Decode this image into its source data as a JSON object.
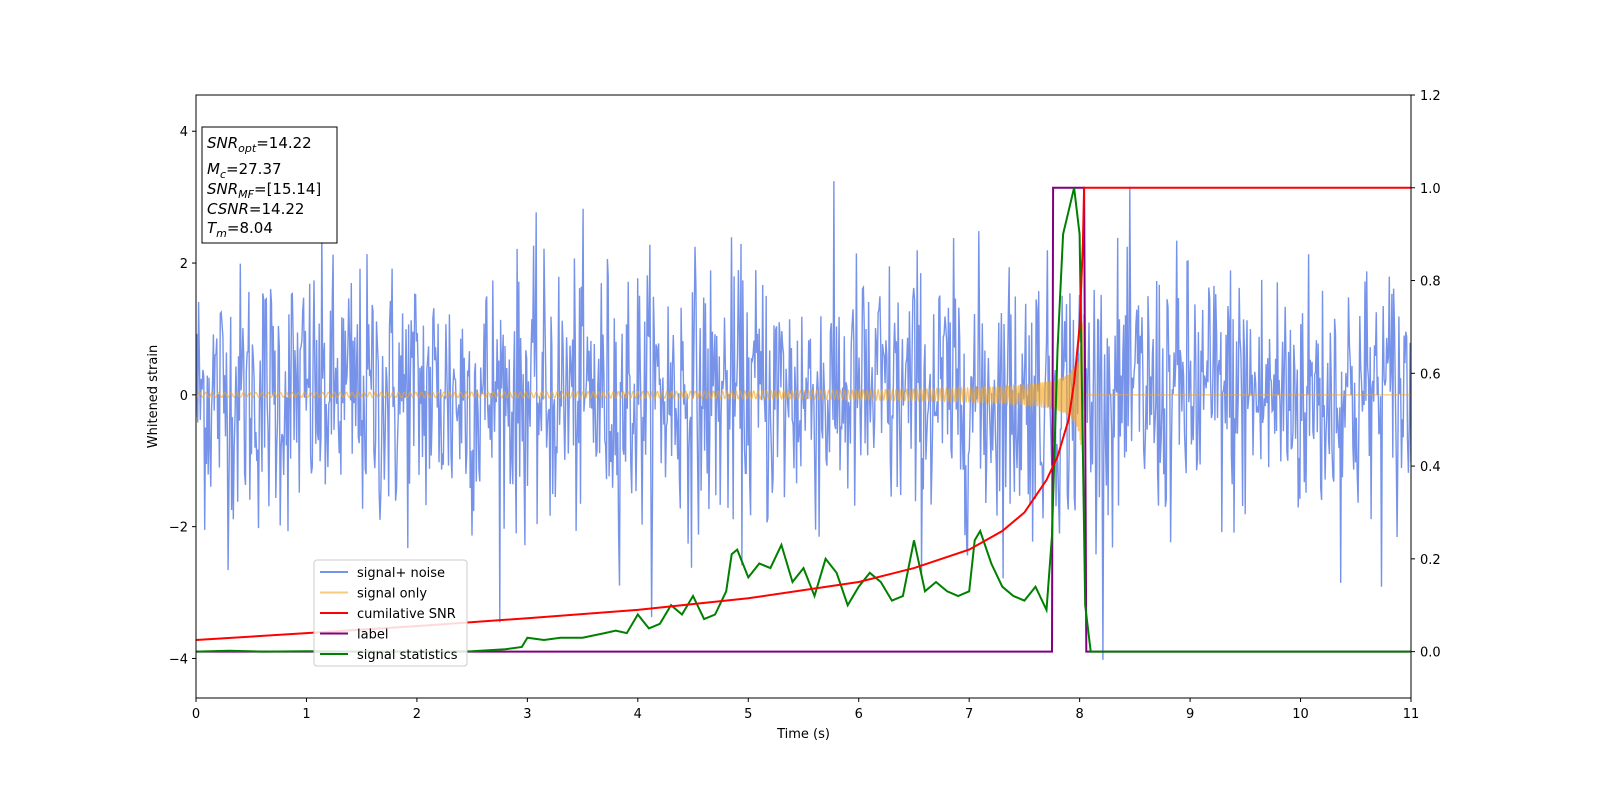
{
  "chart_data": {
    "type": "line",
    "xlabel": "Time (s)",
    "ylabel": "Whitened strain",
    "xlim": [
      0,
      11
    ],
    "ylim": [
      -4.6,
      4.55
    ],
    "y2lim": [
      -0.1,
      1.2
    ],
    "x_ticks": [
      "0",
      "1",
      "2",
      "3",
      "4",
      "5",
      "6",
      "7",
      "8",
      "9",
      "10",
      "11"
    ],
    "y_ticks": [
      "4",
      "2",
      "0",
      "−2",
      "−4"
    ],
    "y2_ticks": [
      "1.2",
      "1.0",
      "0.8",
      "0.6",
      "0.4",
      "0.2",
      "0.0"
    ],
    "grid": false,
    "legend_position": "lower-left",
    "info_box": {
      "position": "top-left",
      "lines": [
        {
          "base": "SNR",
          "sub": "opt",
          "value": "=14.22"
        },
        {
          "base": "M",
          "sub": "c",
          "value": "=27.37"
        },
        {
          "base": "SNR",
          "sub": "MF",
          "value": "=[15.14]"
        },
        {
          "base": "CSNR",
          "sub": "",
          "value": "=14.22"
        },
        {
          "base": "T",
          "sub": "m",
          "value": "=8.04"
        }
      ]
    },
    "series": [
      {
        "name": "signal+ noise",
        "axis": "left",
        "color": "#4169e1",
        "noise_std": 1.0,
        "note_range": [
          -4.15,
          4.12
        ]
      },
      {
        "name": "signal only",
        "axis": "left",
        "color": "#f5a623",
        "merger_time": 8.04,
        "peak_amplitude": 1.3,
        "post_merger_value": 0.0
      },
      {
        "name": "cumilative SNR",
        "axis": "right",
        "color": "#ff0000",
        "x": [
          0,
          1,
          2,
          3,
          4,
          5,
          6,
          6.5,
          7,
          7.3,
          7.5,
          7.7,
          7.8,
          7.9,
          7.95,
          8.0,
          8.03,
          8.04,
          8.05,
          11
        ],
        "y": [
          0.025,
          0.04,
          0.055,
          0.072,
          0.09,
          0.115,
          0.15,
          0.18,
          0.22,
          0.26,
          0.3,
          0.37,
          0.42,
          0.5,
          0.58,
          0.7,
          0.88,
          1.0,
          1.0,
          1.0
        ]
      },
      {
        "name": "label",
        "axis": "right",
        "color": "#800080",
        "x": [
          0,
          7.75,
          7.76,
          8.04,
          8.06,
          11
        ],
        "y": [
          0.0,
          0.0,
          1.0,
          1.0,
          0.0,
          0.0
        ]
      },
      {
        "name": "signal statistics",
        "axis": "right",
        "color": "#008000",
        "x": [
          0,
          0.3,
          0.6,
          1.0,
          1.5,
          2.0,
          2.5,
          2.8,
          2.95,
          3.0,
          3.15,
          3.3,
          3.5,
          3.7,
          3.8,
          3.9,
          4.0,
          4.1,
          4.2,
          4.3,
          4.4,
          4.5,
          4.6,
          4.7,
          4.8,
          4.85,
          4.9,
          5.0,
          5.1,
          5.2,
          5.3,
          5.4,
          5.5,
          5.6,
          5.7,
          5.8,
          5.9,
          6.0,
          6.1,
          6.2,
          6.3,
          6.4,
          6.5,
          6.6,
          6.7,
          6.8,
          6.9,
          7.0,
          7.05,
          7.1,
          7.2,
          7.3,
          7.4,
          7.5,
          7.6,
          7.7,
          7.75,
          7.8,
          7.85,
          7.9,
          7.95,
          8.0,
          8.05,
          8.1,
          11
        ],
        "y": [
          0.0,
          0.002,
          0.0,
          0.001,
          0.0,
          0.0,
          0.001,
          0.005,
          0.01,
          0.03,
          0.025,
          0.03,
          0.03,
          0.04,
          0.045,
          0.04,
          0.08,
          0.05,
          0.06,
          0.1,
          0.08,
          0.12,
          0.07,
          0.08,
          0.13,
          0.21,
          0.22,
          0.16,
          0.19,
          0.18,
          0.23,
          0.15,
          0.18,
          0.12,
          0.2,
          0.17,
          0.1,
          0.14,
          0.17,
          0.15,
          0.11,
          0.12,
          0.24,
          0.13,
          0.15,
          0.13,
          0.12,
          0.13,
          0.24,
          0.26,
          0.19,
          0.14,
          0.12,
          0.11,
          0.14,
          0.09,
          0.25,
          0.65,
          0.9,
          0.95,
          1.0,
          0.9,
          0.1,
          0.0,
          0.0
        ]
      }
    ]
  }
}
